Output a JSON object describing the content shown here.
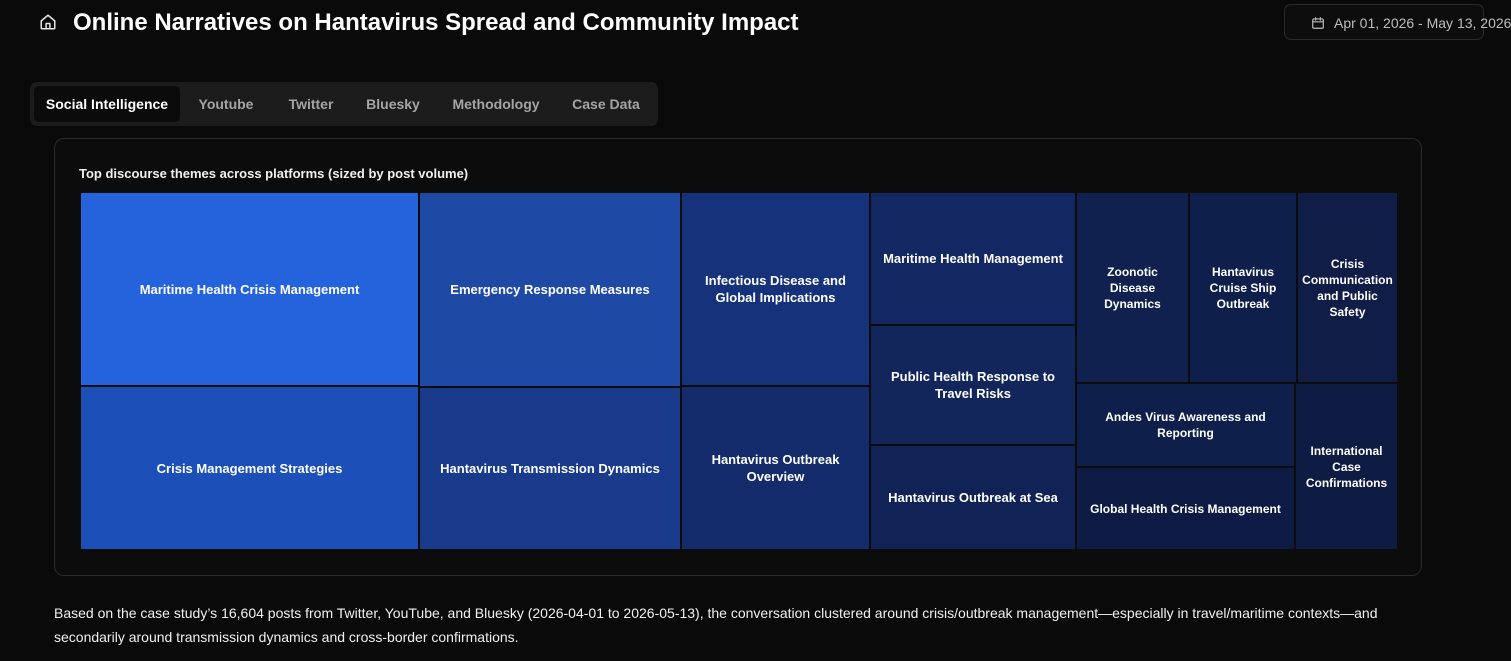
{
  "header": {
    "title": "Online Narratives on Hantavirus Spread and Community Impact",
    "home_icon": "home-icon",
    "date_range": "Apr 01, 2026 - May 13, 2026",
    "calendar_icon": "calendar-icon"
  },
  "tabs": [
    {
      "label": "Social Intelligence",
      "active": true
    },
    {
      "label": "Youtube",
      "active": false
    },
    {
      "label": "Twitter",
      "active": false
    },
    {
      "label": "Bluesky",
      "active": false
    },
    {
      "label": "Methodology",
      "active": false
    },
    {
      "label": "Case Data",
      "active": false
    }
  ],
  "chart_data": {
    "type": "treemap",
    "title": "Top discourse themes across platforms (sized by post volume)",
    "items": [
      {
        "name": "Maritime Health Crisis Management",
        "color": "#2563dc"
      },
      {
        "name": "Crisis Management Strategies",
        "color": "#1d4fb8"
      },
      {
        "name": "Emergency Response Measures",
        "color": "#1e4aa6"
      },
      {
        "name": "Hantavirus Transmission Dynamics",
        "color": "#1a3b8c"
      },
      {
        "name": "Infectious Disease and Global Implications",
        "color": "#16327a"
      },
      {
        "name": "Hantavirus Outbreak Overview",
        "color": "#142c6c"
      },
      {
        "name": "Maritime Health Management",
        "color": "#132862"
      },
      {
        "name": "Public Health Response to Travel Risks",
        "color": "#12265c"
      },
      {
        "name": "Hantavirus Outbreak at Sea",
        "color": "#112256"
      },
      {
        "name": "Zoonotic Disease Dynamics",
        "color": "#10214f"
      },
      {
        "name": "Hantavirus Cruise Ship Outbreak",
        "color": "#0f1f4b"
      },
      {
        "name": "Crisis Communication and Public Safety",
        "color": "#0f1d47"
      },
      {
        "name": "Andes Virus Awareness and Reporting",
        "color": "#0f1f4c"
      },
      {
        "name": "Global Health Crisis Management",
        "color": "#0e1c45"
      },
      {
        "name": "International Case Confirmations",
        "color": "#0e1b43"
      }
    ]
  },
  "summary": "Based on the case study’s 16,604 posts from Twitter, YouTube, and Bluesky (2026-04-01 to 2026-05-13), the conversation clustered around crisis/outbreak management—especially in travel/maritime contexts—and secondarily around transmission dynamics and cross-border confirmations."
}
